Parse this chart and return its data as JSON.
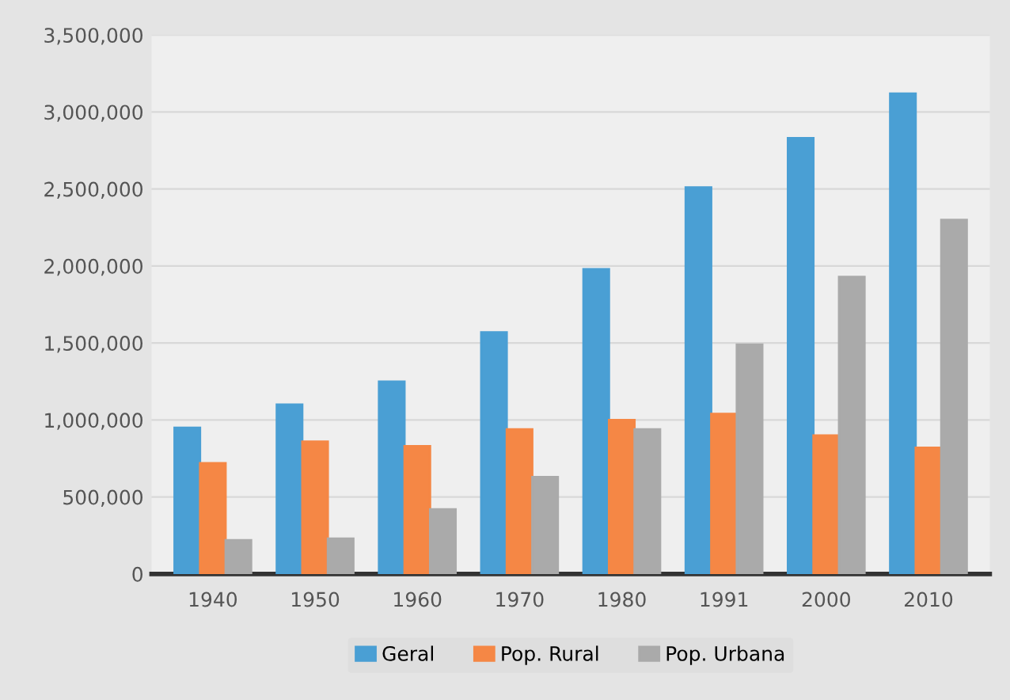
{
  "chart_data": {
    "type": "bar",
    "categories": [
      "1940",
      "1950",
      "1960",
      "1970",
      "1980",
      "1991",
      "2000",
      "2010"
    ],
    "series": [
      {
        "name": "Geral",
        "color": "#4a9fd4",
        "values": [
          950000,
          1100000,
          1250000,
          1570000,
          1980000,
          2510000,
          2830000,
          3120000
        ]
      },
      {
        "name": "Pop. Rural",
        "color": "#f58745",
        "values": [
          720000,
          860000,
          830000,
          940000,
          1000000,
          1040000,
          900000,
          820000
        ]
      },
      {
        "name": "Pop. Urbana",
        "color": "#aaaaaa",
        "values": [
          220000,
          230000,
          420000,
          630000,
          940000,
          1490000,
          1930000,
          2300000
        ]
      }
    ],
    "ylim": [
      0,
      3500000
    ],
    "yticks": [
      {
        "value": 0,
        "label": "0"
      },
      {
        "value": 500000,
        "label": "500,000"
      },
      {
        "value": 1000000,
        "label": "1,000,000"
      },
      {
        "value": 1500000,
        "label": "1,500,000"
      },
      {
        "value": 2000000,
        "label": "2,000,000"
      },
      {
        "value": 2500000,
        "label": "2,500,000"
      },
      {
        "value": 3000000,
        "label": "3,000,000"
      },
      {
        "value": 3500000,
        "label": "3,500,000"
      }
    ],
    "grid": "y",
    "legend": "bottom"
  }
}
